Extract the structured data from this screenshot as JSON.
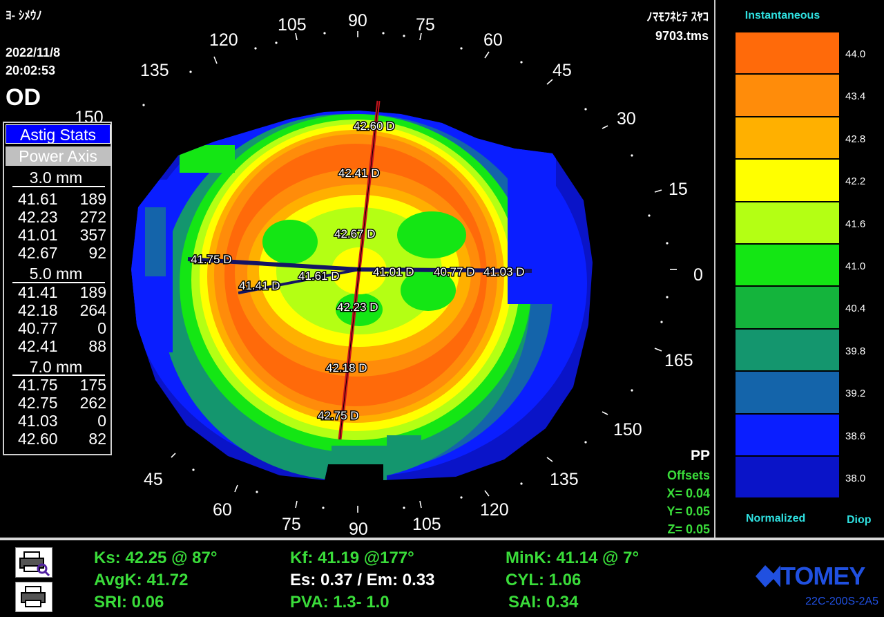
{
  "patient": {
    "name": "ﾖ- ｼﾒｳﾉ",
    "date": "2022/11/8",
    "time": "20:02:53",
    "eye": "OD"
  },
  "file": {
    "name": "ﾉﾏﾓﾌﾈﾋﾃ ｽﾔｺ",
    "filename": "9703.tms"
  },
  "axis_labels": {
    "top": [
      "120",
      "105",
      "90",
      "75",
      "60",
      "45",
      "135",
      "150",
      "30",
      "15",
      "0",
      "165",
      "150"
    ],
    "deg_120": "120",
    "deg_105": "105",
    "deg_90": "90",
    "deg_75": "75",
    "deg_60": "60",
    "deg_45": "45",
    "deg_135": "135",
    "deg_150": "150",
    "deg_30": "30",
    "deg_15": "15",
    "deg_0": "0",
    "deg_165": "165",
    "deg_150r": "150",
    "deg_135b": "135",
    "deg_120b": "120",
    "deg_105b": "105",
    "deg_90b": "90",
    "deg_75b": "75",
    "deg_60b": "60",
    "deg_45b": "45"
  },
  "astig": {
    "title": "Astig Stats",
    "subtitle": "Power  Axis",
    "groups": [
      {
        "label": "3.0 mm",
        "rows": [
          [
            "41.61",
            "189"
          ],
          [
            "42.23",
            "272"
          ],
          [
            "41.01",
            "357"
          ],
          [
            "42.67",
            "92"
          ]
        ]
      },
      {
        "label": "5.0 mm",
        "rows": [
          [
            "41.41",
            "189"
          ],
          [
            "42.18",
            "264"
          ],
          [
            "40.77",
            "0"
          ],
          [
            "42.41",
            "88"
          ]
        ]
      },
      {
        "label": "7.0 mm",
        "rows": [
          [
            "41.75",
            "175"
          ],
          [
            "42.75",
            "262"
          ],
          [
            "41.03",
            "0"
          ],
          [
            "42.60",
            "82"
          ]
        ]
      }
    ]
  },
  "map_labels": {
    "l1": "42.60 D",
    "l2": "42.41 D",
    "l3": "42.67 D",
    "l4": "41.75 D",
    "l5": "41.41 D",
    "l6": "41.61 D",
    "l7": "41.01 D",
    "l8": "40.77 D",
    "l9": "41.03 D",
    "l10": "42.23 D",
    "l11": "42.18 D",
    "l12": "42.75 D"
  },
  "offsets": {
    "pp": "PP",
    "title": "Offsets",
    "x": "X=  0.04",
    "y": "Y=  0.05",
    "z": "Z=  0.05"
  },
  "scale": {
    "title": "Instantaneous",
    "footer_left": "Normalized",
    "footer_right": "Diop",
    "steps": [
      {
        "value": "44.0",
        "color": "#ff6a0a"
      },
      {
        "value": "43.4",
        "color": "#ff8c0a"
      },
      {
        "value": "42.8",
        "color": "#ffb000"
      },
      {
        "value": "42.2",
        "color": "#ffff00"
      },
      {
        "value": "41.6",
        "color": "#b4ff14"
      },
      {
        "value": "41.0",
        "color": "#14e614"
      },
      {
        "value": "40.4",
        "color": "#14b43c"
      },
      {
        "value": "39.8",
        "color": "#14966e"
      },
      {
        "value": "39.2",
        "color": "#1464aa"
      },
      {
        "value": "38.6",
        "color": "#0a1eff"
      },
      {
        "value": "38.0",
        "color": "#0a14c8"
      }
    ]
  },
  "indices": {
    "ks": "Ks: 42.25 @ 87°",
    "kf": "Kf: 41.19 @177°",
    "mink": "MinK: 41.14 @  7°",
    "avgk": "AvgK: 41.72",
    "es_em": "Es: 0.37 / Em: 0.33",
    "cyl": "CYL:  1.06",
    "sri": "SRI: 0.06",
    "pva": "PVA:   1.3-   1.0",
    "sai": "SAI: 0.34"
  },
  "brand": {
    "logo": "TOMEY",
    "model": "22C-200S-2A5"
  },
  "icons": [
    "print-preview-icon",
    "printer-icon"
  ]
}
